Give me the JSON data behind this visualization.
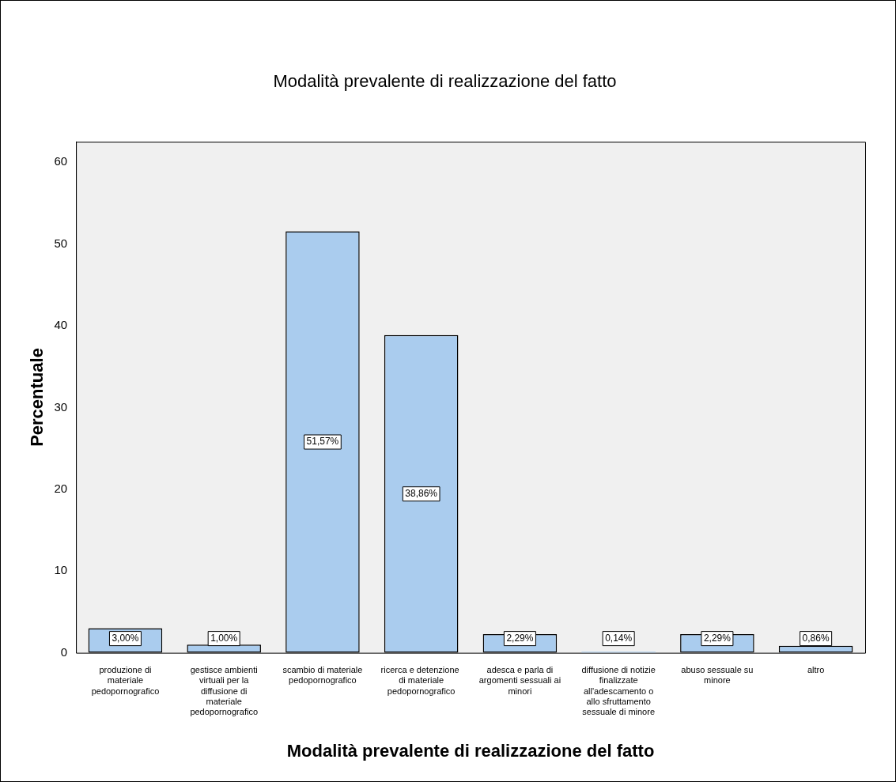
{
  "chart_data": {
    "type": "bar",
    "title": "Modalità prevalente di realizzazione del fatto",
    "xlabel": "Modalità prevalente di realizzazione del fatto",
    "ylabel": "Percentuale",
    "categories": [
      "produzione di materiale pedopornografico",
      "gestisce ambienti virtuali per la diffusione di materiale pedopornografico",
      "scambio di materiale pedopornografico",
      "ricerca e detenzione  di materiale pedopornografico",
      "adesca e parla di argomenti sessuali ai minori",
      "diffusione di notizie finalizzate all'adescamento o allo sfruttamento sessuale di minore",
      "abuso sessuale su minore",
      "altro"
    ],
    "values": [
      3.0,
      1.0,
      51.57,
      38.86,
      2.29,
      0.14,
      2.29,
      0.86
    ],
    "value_labels": [
      "3,00%",
      "1,00%",
      "51,57%",
      "38,86%",
      "2,29%",
      "0,14%",
      "2,29%",
      "0,86%"
    ],
    "color": "#aaccee",
    "ylim": [
      0,
      62.5
    ],
    "yticks": [
      0,
      10,
      20,
      30,
      40,
      50,
      60
    ],
    "legend": false
  }
}
